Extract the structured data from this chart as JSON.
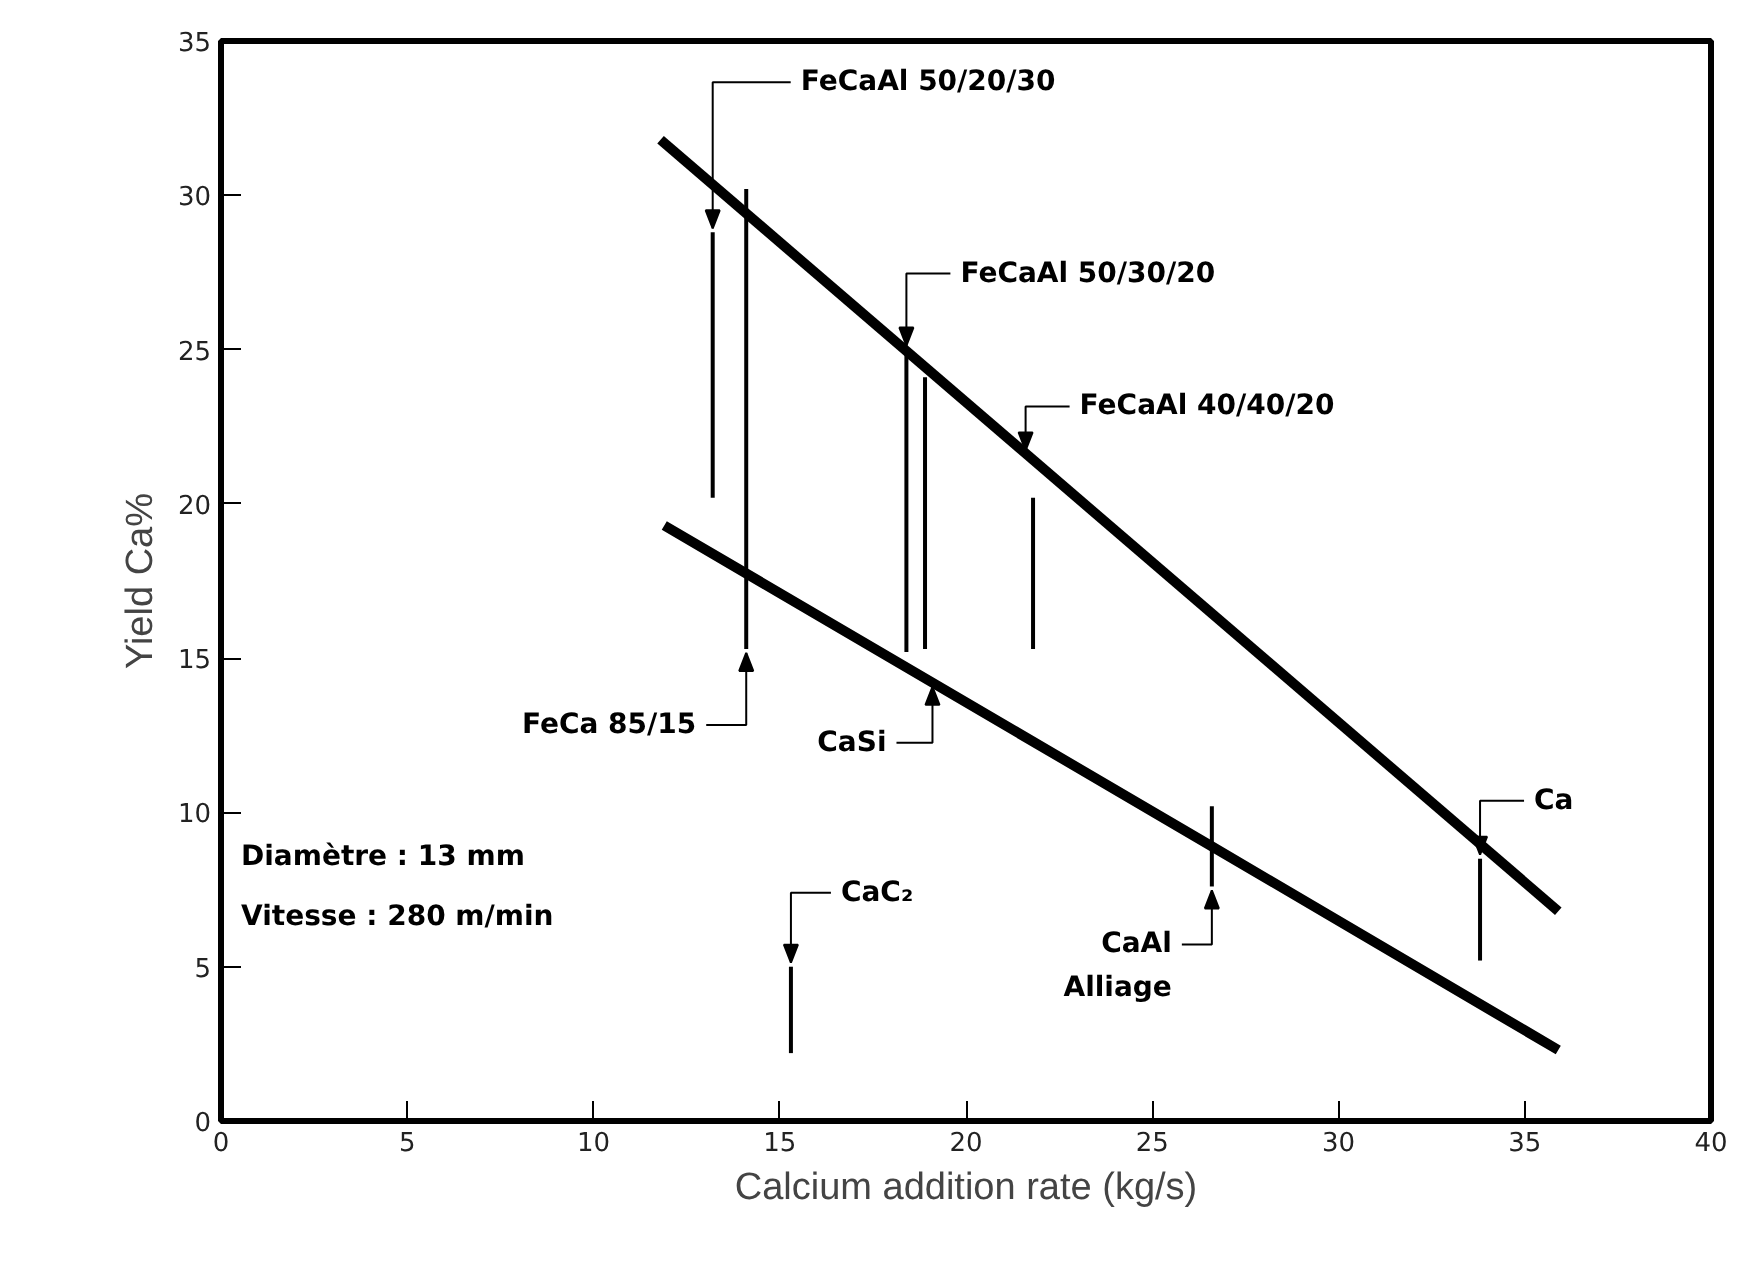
{
  "chart_data": {
    "type": "bar",
    "xlabel": "Calcium addition rate (kg/s)",
    "ylabel": "Yield Ca%",
    "xlim": [
      0,
      40
    ],
    "ylim": [
      0,
      35
    ],
    "xticks": [
      0,
      5,
      10,
      15,
      20,
      25,
      30,
      35,
      40
    ],
    "yticks": [
      0,
      5,
      10,
      15,
      20,
      25,
      30,
      35
    ],
    "grid": false,
    "series": [
      {
        "color": "#000000",
        "x": [
          13.2,
          14.1,
          15.3,
          18.4,
          18.9,
          21.8,
          26.6,
          33.8
        ],
        "base": [
          20.2,
          15.3,
          2.2,
          15.2,
          15.3,
          15.3,
          7.6,
          5.2
        ],
        "values": [
          8.6,
          14.9,
          2.8,
          9.8,
          8.8,
          4.9,
          2.6,
          3.3
        ]
      },
      {
        "type": "line",
        "color": "#000000",
        "line_style": "solid",
        "x": [
          11.8,
          35.9
        ],
        "values": [
          31.8,
          6.8
        ]
      },
      {
        "type": "line",
        "color": "#000000",
        "line_style": "solid",
        "x": [
          11.9,
          26.6,
          35.9
        ],
        "values": [
          19.3,
          8.9,
          2.3
        ]
      }
    ],
    "annotations": [
      {
        "text": "FeCaAl 50/20/30",
        "x": 13.2,
        "y": 28.8
      },
      {
        "text": "FeCaAl 50/30/20",
        "x": 18.4,
        "y": 25.0
      },
      {
        "text": "FeCaAl 40/40/20",
        "x": 21.6,
        "y": 21.6
      },
      {
        "text": "FeCa 85/15",
        "x": 14.1,
        "y": 15.3
      },
      {
        "text": "CaSi",
        "x": 19.1,
        "y": 14.2
      },
      {
        "text": "CaC₂",
        "x": 15.3,
        "y": 5.0
      },
      {
        "text": "Ca",
        "x": 33.8,
        "y": 8.5
      },
      {
        "text": "CaAl\nAlliage",
        "x": 26.6,
        "y": 7.6
      },
      "Diamètre : 13 mm",
      "Vitesse : 280 m/min"
    ]
  }
}
